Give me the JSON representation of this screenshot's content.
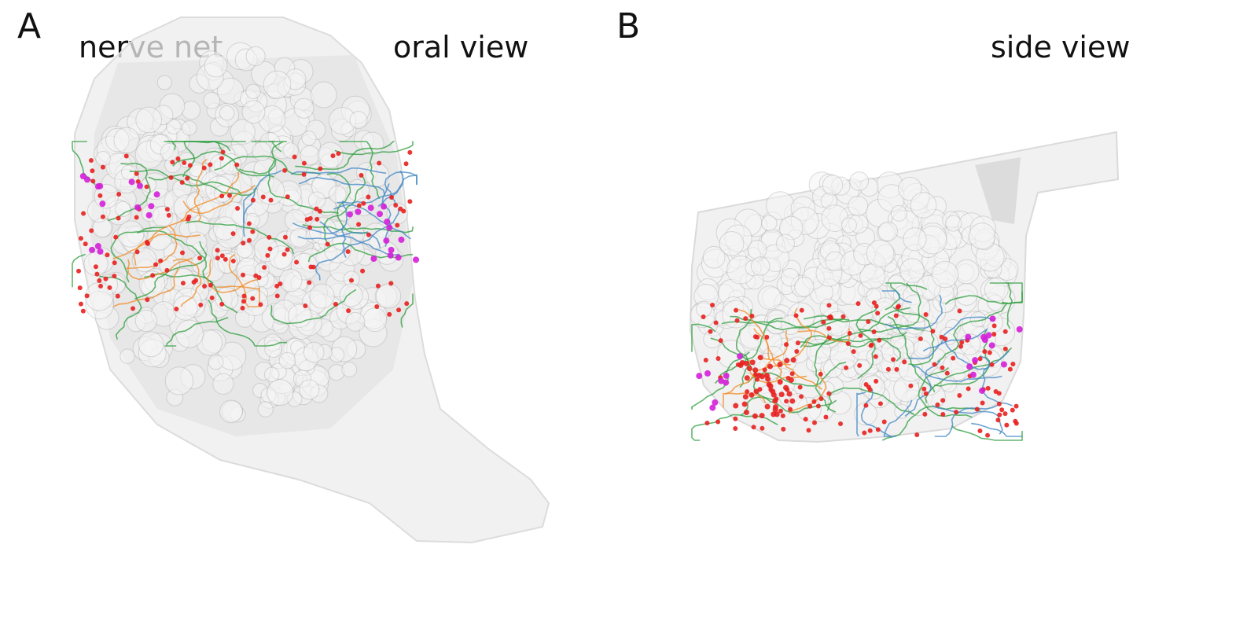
{
  "figure": {
    "panel_a": {
      "letter": "A",
      "left_title": "nerve net",
      "right_title": "oral view"
    },
    "panel_b": {
      "letter": "B",
      "right_title": "side view"
    }
  },
  "colors": {
    "background": "#ffffff",
    "body_fill": "#e9e9e9",
    "vesicle": "#9a9a9a",
    "neurite_green": "#2e9e3e",
    "neurite_orange": "#f08a24",
    "neurite_blue": "#3f86c4",
    "node_red": "#e8201f",
    "node_magenta": "#d41fd8"
  }
}
